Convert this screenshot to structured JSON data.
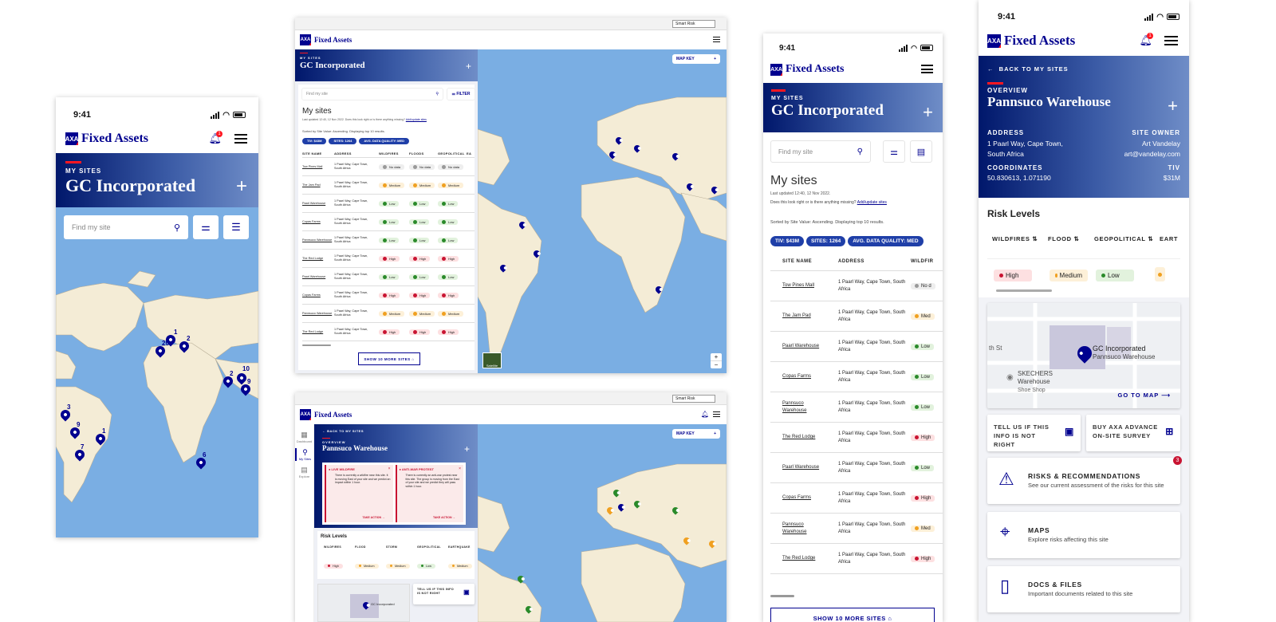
{
  "status": {
    "time": "9:41"
  },
  "brand": {
    "name": "Fixed Assets",
    "logo": "AXA"
  },
  "notifications": {
    "count": "1",
    "count_risks": "3"
  },
  "company": {
    "kicker": "MY SITES",
    "name": "GC Incorporated"
  },
  "search": {
    "placeholder": "Find my site",
    "filter_label": "FILTER",
    "map_key": "MAP KEY"
  },
  "browser": {
    "select": "Smart Risk"
  },
  "sites_panel": {
    "heading": "My sites",
    "updated": "Last updated 12:40, 12 Nov 2022.",
    "question": "Does this look right or is there anything missing?",
    "link": "Add/update sites",
    "sorted": "Sorted by Site Value: Ascending. Displaying top 10 results.",
    "sorted_small": "Sorted by Site Value: Ascending. Displaying top 10 results.",
    "chips": [
      "TIV: $43M",
      "SITES: 1264",
      "AVG. DATA QUALITY: MED"
    ],
    "headers": [
      "SITE NAME",
      "ADDRESS",
      "WILDFIRES",
      "FLOODS",
      "GEOPOLITICAL",
      "EA"
    ],
    "mobile_headers": [
      "SITE NAME",
      "ADDRESS",
      "WILDFIR"
    ],
    "rows": [
      {
        "name": "Tow Pines Mall",
        "address": "1 Paarl Way, Cape Town, South Africa",
        "w": "No data",
        "wl": "nd",
        "f": "No data",
        "fl": "nd",
        "g": "No data",
        "gl": "nd",
        "m": "No d"
      },
      {
        "name": "The Jam Pad",
        "address": "1 Paarl Way, Cape Town, South Africa",
        "w": "Medium",
        "wl": "me",
        "f": "Medium",
        "fl": "me",
        "g": "Medium",
        "gl": "me",
        "m": "Med"
      },
      {
        "name": "Paarl Warehouse",
        "address": "1 Paarl Way, Cape Town, South Africa",
        "w": "Low",
        "wl": "lo",
        "f": "Low",
        "fl": "lo",
        "g": "Low",
        "gl": "lo",
        "m": "Low"
      },
      {
        "name": "Copas Farms",
        "address": "1 Paarl Way, Cape Town, South Africa",
        "w": "Low",
        "wl": "lo",
        "f": "Low",
        "fl": "lo",
        "g": "Low",
        "gl": "lo",
        "m": "Low"
      },
      {
        "name": "Pannsuco Warehouse",
        "address": "1 Paarl Way, Cape Town, South Africa",
        "w": "Low",
        "wl": "lo",
        "f": "Low",
        "fl": "lo",
        "g": "Low",
        "gl": "lo",
        "m": "Low"
      },
      {
        "name": "The Red Lodge",
        "address": "1 Paarl Way, Cape Town, South Africa",
        "w": "High",
        "wl": "hi",
        "f": "High",
        "fl": "hi",
        "g": "High",
        "gl": "hi",
        "m": "High"
      },
      {
        "name": "Paarl Warehouse",
        "address": "1 Paarl Way, Cape Town, South Africa",
        "w": "Low",
        "wl": "lo",
        "f": "Low",
        "fl": "lo",
        "g": "Low",
        "gl": "lo",
        "m": "Low"
      },
      {
        "name": "Copas Farms",
        "address": "1 Paarl Way, Cape Town, South Africa",
        "w": "High",
        "wl": "hi",
        "f": "High",
        "fl": "hi",
        "g": "High",
        "gl": "hi",
        "m": "High"
      },
      {
        "name": "Pannsuco Warehouse",
        "address": "1 Paarl Way, Cape Town, South Africa",
        "w": "Medium",
        "wl": "me",
        "f": "Medium",
        "fl": "me",
        "g": "Medium",
        "gl": "me",
        "m": "Med"
      },
      {
        "name": "The Red Lodge",
        "address": "1 Paarl Way, Cape Town, South Africa",
        "w": "High",
        "wl": "hi",
        "f": "High",
        "fl": "hi",
        "g": "High",
        "gl": "hi",
        "m": "High"
      }
    ],
    "show_more": "SHOW 10 MORE SITES"
  },
  "map_pins": [
    "20",
    "1",
    "2",
    "2",
    "10",
    "9",
    "3",
    "9",
    "1",
    "7",
    "6"
  ],
  "satellite_label": "Satellite",
  "zoom": {
    "in": "+",
    "out": "−"
  },
  "sidebar_nav": [
    "Dashboard",
    "My Sites",
    "Explore"
  ],
  "site": {
    "back": "BACK TO MY SITES",
    "overview": "OVERVIEW",
    "name": "Pannsuco Warehouse",
    "address_label": "ADDRESS",
    "address": "1 Paarl Way, Cape Town, South Africa",
    "owner_label": "SITE OWNER",
    "owner": "Art Vandelay",
    "email": "art@vandelay.com",
    "coords_label": "COORDINATES",
    "coords": "50.830613, 1.071190",
    "tiv_label": "TIV",
    "tiv": "$31M",
    "risk_title": "Risk Levels",
    "risk_headers": [
      "WILDFIRES",
      "FLOOD",
      "GEOPOLITICAL",
      "EART"
    ],
    "risk_values": [
      {
        "label": "High",
        "lvl": "hi"
      },
      {
        "label": "Medium",
        "lvl": "me"
      },
      {
        "label": "Low",
        "lvl": "lo"
      }
    ],
    "desktop_risk_headers": [
      "WILDFIRES",
      "FLOOD",
      "STORM",
      "GEOPOLITICAL",
      "EARTHQUAKE"
    ],
    "desktop_risk_values": [
      {
        "label": "High",
        "lvl": "hi"
      },
      {
        "label": "Medium",
        "lvl": "me"
      },
      {
        "label": "Medium",
        "lvl": "me"
      },
      {
        "label": "Low",
        "lvl": "lo"
      },
      {
        "label": "Medium",
        "lvl": "me"
      }
    ],
    "map_company": "GC Incorporated",
    "map_site": "Pannsuco Warehouse",
    "map_poi": "SKECHERS Warehouse",
    "map_poi_sub": "Shoe Shop",
    "map_street": "th St",
    "go_to_map": "GO TO MAP",
    "tell_us": "TELL US IF THIS INFO IS NOT RIGHT",
    "buy": "BUY AXA ADVANCE ON-SITE SURVEY",
    "sections": [
      {
        "title": "RISKS & RECOMMENDATIONS",
        "sub": "See our current assessment of the risks for this site"
      },
      {
        "title": "MAPS",
        "sub": "Explore risks affecting this site"
      },
      {
        "title": "DOCS & FILES",
        "sub": "Important documents related to this site"
      }
    ],
    "alerts": [
      {
        "title": "LIVE WILDFIRE",
        "body": "There is currently a wildfire near this site. It is moving East of your site and we predict an impact within 1 hour.",
        "action": "TAKE ACTION"
      },
      {
        "title": "ANTI-WAR PROTEST",
        "body": "There is currently an anti-war protest near this site. The group is moving from the East of your site and we predict they will pass within 1 hour.",
        "action": "TAKE ACTION"
      }
    ]
  }
}
